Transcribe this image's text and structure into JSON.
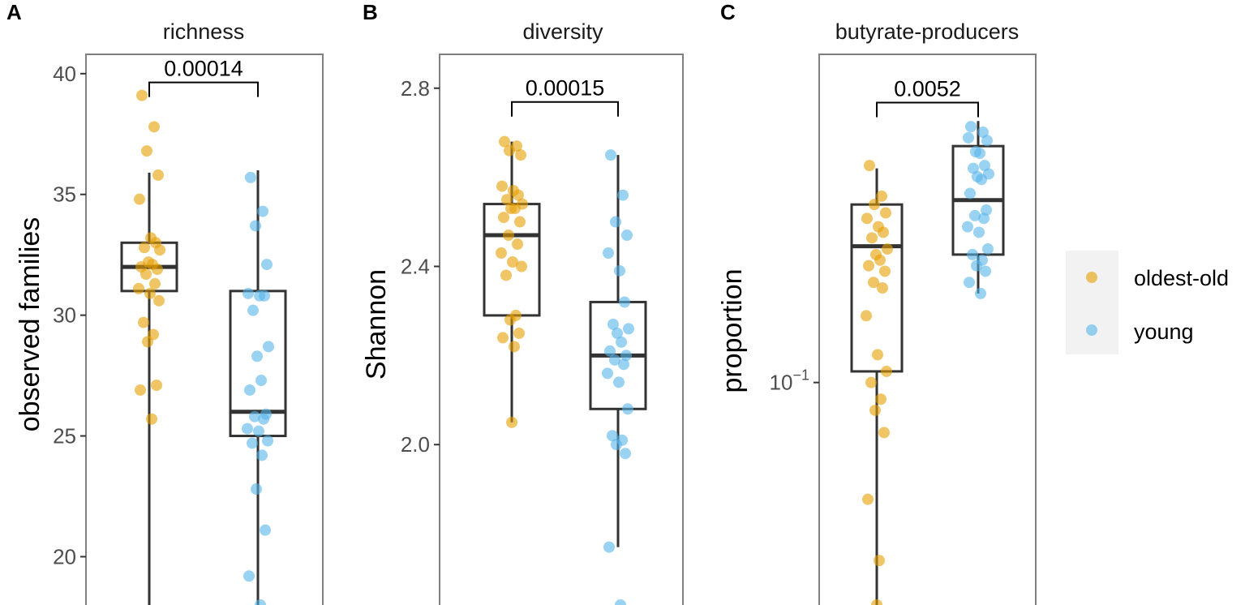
{
  "chart_data": [
    {
      "panel": "A",
      "type": "box",
      "title": "richness",
      "ylabel": "observed families",
      "xlabel": "",
      "scale": "linear",
      "ylim": [
        18,
        40.8
      ],
      "yticks": [
        {
          "value": 20,
          "label": "20"
        },
        {
          "value": 25,
          "label": "25"
        },
        {
          "value": 30,
          "label": "30"
        },
        {
          "value": 35,
          "label": "35"
        },
        {
          "value": 40,
          "label": "40"
        }
      ],
      "comparison_p": "0.00014",
      "bracket_y": 39.1,
      "groups": [
        {
          "name": "oldest-old",
          "box": {
            "lower": 18,
            "q1": 31,
            "median": 32,
            "q3": 33,
            "upper": 35.9
          },
          "points": [
            39.1,
            37.8,
            36.8,
            35.8,
            34.8,
            33.2,
            33.0,
            32.8,
            32.7,
            32.2,
            32.1,
            32.0,
            31.9,
            31.7,
            31.3,
            31.1,
            30.9,
            30.6,
            29.7,
            29.2,
            28.9,
            27.1,
            26.9,
            25.7
          ]
        },
        {
          "name": "young",
          "box": {
            "lower": 18,
            "q1": 25,
            "median": 26,
            "q3": 31,
            "upper": 36
          },
          "points": [
            35.7,
            34.3,
            33.7,
            32.1,
            30.9,
            30.8,
            30.8,
            30.2,
            28.7,
            28.3,
            27.3,
            26.9,
            25.9,
            25.8,
            25.7,
            25.3,
            25.2,
            24.8,
            24.7,
            24.2,
            22.8,
            21.1,
            19.2,
            18.0
          ]
        }
      ]
    },
    {
      "panel": "B",
      "type": "box",
      "title": "diversity",
      "ylabel": "Shannon",
      "xlabel": "",
      "scale": "linear",
      "ylim": [
        1.64,
        2.876
      ],
      "yticks": [
        {
          "value": 2.0,
          "label": "2.0"
        },
        {
          "value": 2.4,
          "label": "2.4"
        },
        {
          "value": 2.8,
          "label": "2.8"
        }
      ],
      "comparison_p": "0.00015",
      "bracket_y": 2.74,
      "groups": [
        {
          "name": "oldest-old",
          "box": {
            "lower": 2.05,
            "q1": 2.29,
            "median": 2.47,
            "q3": 2.54,
            "upper": 2.68
          },
          "points": [
            2.68,
            2.67,
            2.66,
            2.65,
            2.58,
            2.57,
            2.56,
            2.55,
            2.54,
            2.53,
            2.53,
            2.51,
            2.5,
            2.47,
            2.45,
            2.43,
            2.41,
            2.4,
            2.38,
            2.29,
            2.28,
            2.25,
            2.24,
            2.22,
            2.05
          ]
        },
        {
          "name": "young",
          "box": {
            "lower": 1.77,
            "q1": 2.08,
            "median": 2.2,
            "q3": 2.32,
            "upper": 2.65
          },
          "points": [
            2.65,
            2.56,
            2.5,
            2.47,
            2.43,
            2.39,
            2.32,
            2.27,
            2.26,
            2.25,
            2.23,
            2.21,
            2.2,
            2.19,
            2.18,
            2.16,
            2.14,
            2.08,
            2.02,
            2.01,
            2.0,
            1.98,
            1.77,
            1.64
          ]
        }
      ]
    },
    {
      "panel": "C",
      "type": "box",
      "title": "butyrate-producers",
      "ylabel": "proportion",
      "xlabel": "",
      "scale": "log10",
      "ylim_log10": [
        -1.4,
        -0.41
      ],
      "yticks": [
        {
          "value": 0.1,
          "base": "10",
          "exponent": "−1"
        }
      ],
      "comparison_p": "0.0052",
      "bracket_y_log10": -0.52,
      "groups": [
        {
          "name": "oldest-old",
          "box_log10": {
            "lower": -1.4,
            "q1": -0.98,
            "median": -0.755,
            "q3": -0.68,
            "upper": -0.615
          },
          "points_log10": [
            -0.61,
            -0.665,
            -0.68,
            -0.695,
            -0.705,
            -0.72,
            -0.73,
            -0.74,
            -0.76,
            -0.77,
            -0.78,
            -0.79,
            -0.8,
            -0.82,
            -0.83,
            -0.88,
            -0.95,
            -0.98,
            -1.0,
            -1.03,
            -1.05,
            -1.09,
            -1.21,
            -1.32,
            -1.4
          ]
        },
        {
          "name": "young",
          "box_log10": {
            "lower": -0.84,
            "q1": -0.77,
            "median": -0.672,
            "q3": -0.575,
            "upper": -0.53
          },
          "points_log10": [
            -0.54,
            -0.55,
            -0.585,
            -0.565,
            -0.56,
            -0.588,
            -0.61,
            -0.615,
            -0.625,
            -0.63,
            -0.635,
            -0.66,
            -0.69,
            -0.7,
            -0.705,
            -0.72,
            -0.73,
            -0.76,
            -0.77,
            -0.78,
            -0.79,
            -0.8,
            -0.82,
            -0.84
          ]
        }
      ]
    }
  ],
  "legend": {
    "items": [
      {
        "label": "oldest-old",
        "color": "#E69F00"
      },
      {
        "label": "young",
        "color": "#56B4E9"
      }
    ],
    "position": "right"
  }
}
